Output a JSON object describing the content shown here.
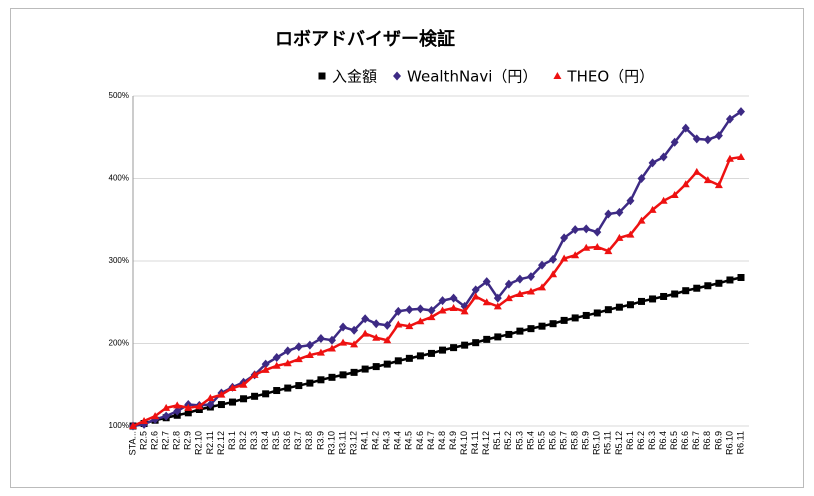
{
  "chart_data": {
    "type": "line",
    "title": "ロボアドバイザー検証",
    "categories": [
      "STA...",
      "R2.5",
      "R2.6",
      "R2.7",
      "R2.8",
      "R2.9",
      "R2.10",
      "R2.11",
      "R2.12",
      "R3.1",
      "R3.2",
      "R3.3",
      "R3.4",
      "R3.5",
      "R3.6",
      "R3.7",
      "R3.8",
      "R3.9",
      "R3.10",
      "R3.11",
      "R3.12",
      "R4.1",
      "R4.2",
      "R4.3",
      "R4.4",
      "R4.5",
      "R4.6",
      "R4.7",
      "R4.8",
      "R4.9",
      "R4.10",
      "R4.11",
      "R4.12",
      "R5.1",
      "R5.2",
      "R5.3",
      "R5.4",
      "R5.5",
      "R5.6",
      "R5.7",
      "R5.8",
      "R5.9",
      "R5.10",
      "R5.11",
      "R5.12",
      "R6.1",
      "R6.2",
      "R6.3",
      "R6.4",
      "R6.5",
      "R6.6",
      "R6.7",
      "R6.8",
      "R6.9",
      "R6.10",
      "R6.11"
    ],
    "series": [
      {
        "name": "入金額",
        "color": "#000000",
        "marker": "square",
        "values": [
          100,
          103,
          107,
          110,
          113,
          116,
          120,
          123,
          126,
          129,
          133,
          136,
          139,
          143,
          146,
          149,
          152,
          156,
          159,
          162,
          165,
          169,
          172,
          175,
          179,
          182,
          185,
          188,
          192,
          195,
          198,
          201,
          205,
          208,
          211,
          215,
          218,
          221,
          224,
          228,
          231,
          234,
          237,
          241,
          244,
          247,
          251,
          254,
          257,
          260,
          264,
          267,
          270,
          273,
          277,
          280
        ]
      },
      {
        "name": "WealthNavi（円）",
        "color": "#3d2a84",
        "marker": "diamond",
        "values": [
          100,
          102,
          108,
          112,
          118,
          126,
          125,
          126,
          140,
          147,
          153,
          162,
          175,
          183,
          191,
          196,
          198,
          206,
          204,
          220,
          216,
          230,
          224,
          222,
          239,
          241,
          242,
          240,
          252,
          255,
          245,
          265,
          275,
          255,
          272,
          278,
          281,
          295,
          302,
          328,
          338,
          339,
          335,
          357,
          359,
          373,
          400,
          419,
          426,
          444,
          461,
          448,
          447,
          452,
          472,
          481
        ]
      },
      {
        "name": "THEO（円）",
        "color": "#ee1111",
        "marker": "triangle",
        "values": [
          100,
          106,
          112,
          122,
          125,
          122,
          124,
          134,
          138,
          146,
          150,
          162,
          168,
          173,
          176,
          181,
          186,
          189,
          194,
          201,
          199,
          212,
          207,
          204,
          223,
          221,
          227,
          232,
          240,
          243,
          239,
          257,
          250,
          245,
          255,
          260,
          263,
          268,
          284,
          303,
          307,
          316,
          317,
          312,
          328,
          332,
          349,
          362,
          373,
          380,
          393,
          408,
          398,
          392,
          424,
          426
        ]
      }
    ],
    "ylim": [
      100,
      500
    ],
    "yticks": [
      {
        "value": 100,
        "label": "100%"
      },
      {
        "value": 200,
        "label": "200%"
      },
      {
        "value": 300,
        "label": "300%"
      },
      {
        "value": 400,
        "label": "400%"
      },
      {
        "value": 500,
        "label": "500%"
      }
    ],
    "grid": true,
    "legend": "top"
  }
}
